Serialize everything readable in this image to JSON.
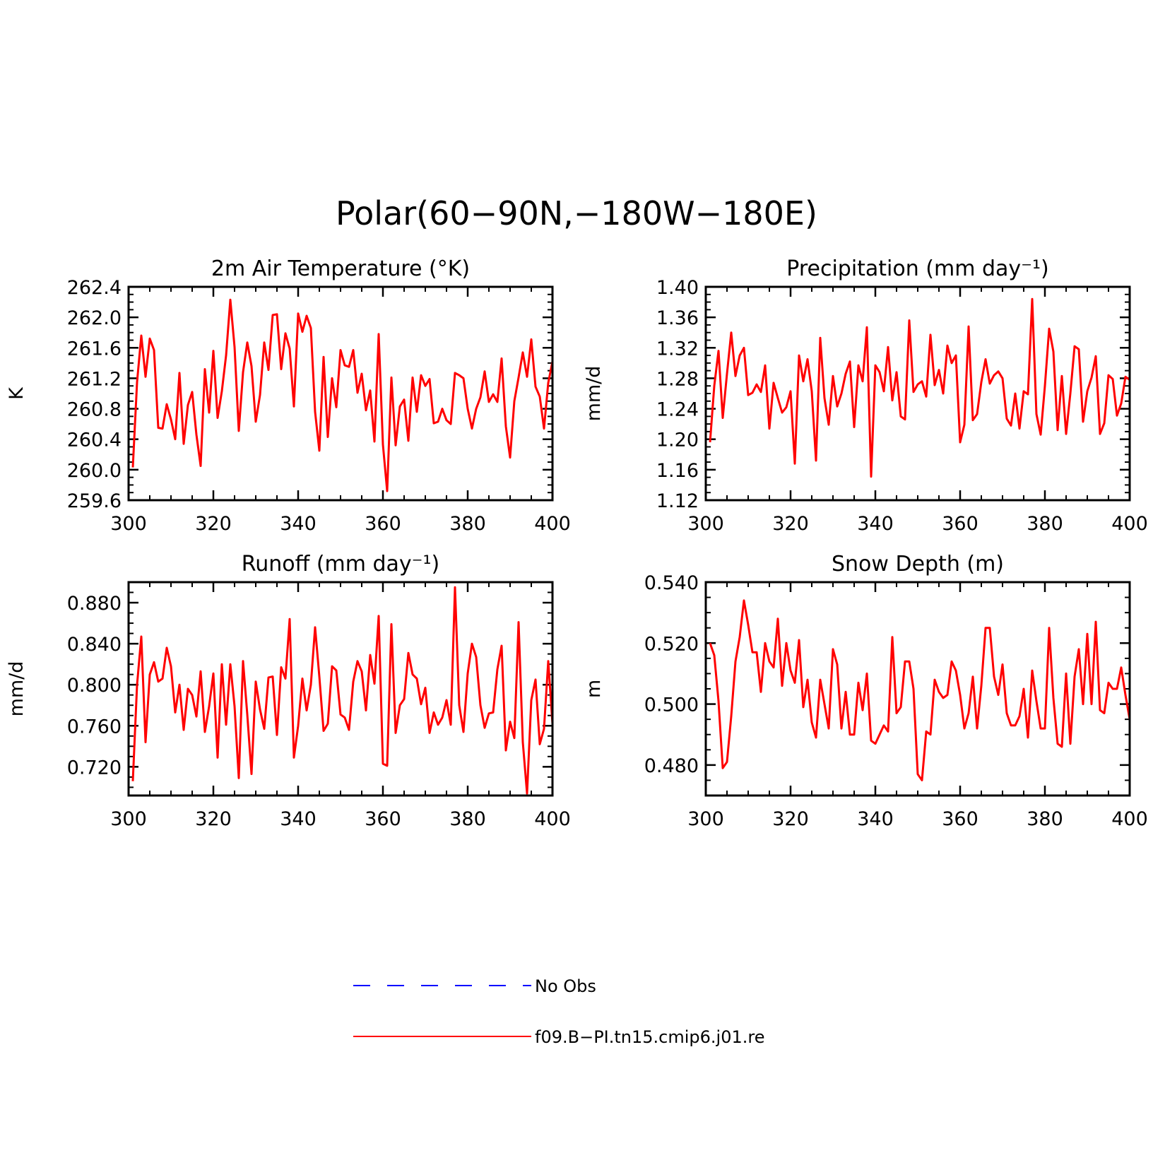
{
  "figure": {
    "title": "Polar(60−90N,−180W−180E)"
  },
  "colors": {
    "model_line": "#ff0000",
    "obs_line": "#0000ff",
    "axis": "#000000"
  },
  "legend": {
    "items": [
      {
        "label": "No Obs",
        "style": "dashed",
        "color": "#0000ff"
      },
      {
        "label": "f09.B−PI.tn15.cmip6.j01.re",
        "style": "solid",
        "color": "#ff0000"
      }
    ]
  },
  "chart_data": [
    {
      "type": "line",
      "title": "2m Air Temperature (°K)",
      "ylabel": "K",
      "xlim": [
        300,
        400
      ],
      "ylim": [
        259.6,
        262.4
      ],
      "xticks": [
        300,
        320,
        340,
        360,
        380,
        400
      ],
      "xtick_labels": [
        "300",
        "320",
        "340",
        "360",
        "380",
        "400"
      ],
      "yticks": [
        259.6,
        260.0,
        260.4,
        260.8,
        261.2,
        261.6,
        262.0,
        262.4
      ],
      "ytick_labels": [
        "259.6",
        "260.0",
        "260.4",
        "260.8",
        "261.2",
        "261.6",
        "262.0",
        "262.4"
      ],
      "x_start": 301,
      "series": [
        {
          "name": "f09.B−PI.tn15.cmip6.j01.re",
          "color": "#ff0000",
          "values": [
            260.03,
            261.15,
            261.76,
            261.22,
            261.72,
            261.57,
            260.55,
            260.54,
            260.86,
            260.66,
            260.4,
            261.27,
            260.34,
            260.85,
            261.02,
            260.46,
            260.05,
            261.32,
            260.75,
            261.56,
            260.68,
            261.03,
            261.5,
            262.23,
            261.61,
            260.51,
            261.28,
            261.67,
            261.36,
            260.63,
            260.98,
            261.67,
            261.31,
            262.03,
            262.04,
            261.32,
            261.79,
            261.59,
            260.83,
            262.05,
            261.81,
            262.02,
            261.86,
            260.76,
            260.25,
            261.48,
            260.43,
            261.2,
            260.82,
            261.57,
            261.37,
            261.35,
            261.57,
            261.01,
            261.26,
            260.78,
            261.04,
            260.37,
            261.78,
            260.33,
            259.72,
            261.21,
            260.32,
            260.83,
            260.92,
            260.38,
            261.21,
            260.76,
            261.24,
            261.1,
            261.19,
            260.61,
            260.63,
            260.8,
            260.65,
            260.6,
            261.27,
            261.24,
            261.2,
            260.8,
            260.54,
            260.8,
            260.95,
            261.29,
            260.89,
            260.99,
            260.89,
            261.46,
            260.57,
            260.16,
            260.9,
            261.21,
            261.54,
            261.22,
            261.71,
            261.09,
            260.96,
            260.54,
            261.14,
            261.42
          ]
        }
      ]
    },
    {
      "type": "line",
      "title": "Precipitation (mm day⁻¹)",
      "ylabel": "mm/d",
      "xlim": [
        300,
        400
      ],
      "ylim": [
        1.12,
        1.4
      ],
      "xticks": [
        300,
        320,
        340,
        360,
        380,
        400
      ],
      "xtick_labels": [
        "300",
        "320",
        "340",
        "360",
        "380",
        "400"
      ],
      "yticks": [
        1.12,
        1.16,
        1.2,
        1.24,
        1.28,
        1.32,
        1.36,
        1.4
      ],
      "ytick_labels": [
        "1.12",
        "1.16",
        "1.20",
        "1.24",
        "1.28",
        "1.32",
        "1.36",
        "1.40"
      ],
      "x_start": 301,
      "series": [
        {
          "name": "f09.B−PI.tn15.cmip6.j01.re",
          "color": "#ff0000",
          "values": [
            1.196,
            1.27,
            1.316,
            1.228,
            1.286,
            1.34,
            1.283,
            1.31,
            1.32,
            1.258,
            1.261,
            1.272,
            1.262,
            1.297,
            1.214,
            1.274,
            1.254,
            1.235,
            1.242,
            1.263,
            1.168,
            1.31,
            1.276,
            1.305,
            1.263,
            1.172,
            1.333,
            1.254,
            1.219,
            1.283,
            1.243,
            1.26,
            1.286,
            1.302,
            1.216,
            1.297,
            1.276,
            1.347,
            1.151,
            1.297,
            1.288,
            1.263,
            1.321,
            1.251,
            1.288,
            1.23,
            1.226,
            1.356,
            1.262,
            1.272,
            1.276,
            1.256,
            1.337,
            1.271,
            1.291,
            1.26,
            1.323,
            1.3,
            1.31,
            1.196,
            1.219,
            1.348,
            1.225,
            1.233,
            1.275,
            1.305,
            1.273,
            1.284,
            1.289,
            1.28,
            1.227,
            1.218,
            1.26,
            1.214,
            1.263,
            1.259,
            1.384,
            1.233,
            1.206,
            1.27,
            1.345,
            1.315,
            1.212,
            1.283,
            1.207,
            1.26,
            1.322,
            1.318,
            1.223,
            1.263,
            1.281,
            1.309,
            1.207,
            1.221,
            1.284,
            1.279,
            1.231,
            1.247,
            1.282,
            1.278
          ]
        }
      ]
    },
    {
      "type": "line",
      "title": "Runoff (mm day⁻¹)",
      "ylabel": "mm/d",
      "xlim": [
        300,
        400
      ],
      "ylim": [
        0.692,
        0.9
      ],
      "xticks": [
        300,
        320,
        340,
        360,
        380,
        400
      ],
      "xtick_labels": [
        "300",
        "320",
        "340",
        "360",
        "380",
        "400"
      ],
      "yticks": [
        0.72,
        0.76,
        0.8,
        0.84,
        0.88
      ],
      "ytick_labels": [
        "0.720",
        "0.760",
        "0.800",
        "0.840",
        "0.880"
      ],
      "x_start": 301,
      "series": [
        {
          "name": "f09.B−PI.tn15.cmip6.j01.re",
          "color": "#ff0000",
          "values": [
            0.706,
            0.8,
            0.847,
            0.744,
            0.81,
            0.822,
            0.803,
            0.806,
            0.836,
            0.818,
            0.773,
            0.8,
            0.756,
            0.796,
            0.79,
            0.769,
            0.813,
            0.754,
            0.779,
            0.811,
            0.729,
            0.82,
            0.761,
            0.82,
            0.779,
            0.709,
            0.823,
            0.771,
            0.713,
            0.803,
            0.776,
            0.757,
            0.807,
            0.808,
            0.751,
            0.817,
            0.806,
            0.864,
            0.729,
            0.76,
            0.806,
            0.775,
            0.8,
            0.856,
            0.808,
            0.755,
            0.762,
            0.818,
            0.814,
            0.771,
            0.768,
            0.756,
            0.803,
            0.823,
            0.813,
            0.775,
            0.829,
            0.801,
            0.867,
            0.723,
            0.721,
            0.859,
            0.753,
            0.78,
            0.786,
            0.831,
            0.81,
            0.806,
            0.781,
            0.797,
            0.753,
            0.773,
            0.761,
            0.768,
            0.785,
            0.761,
            0.895,
            0.78,
            0.754,
            0.811,
            0.84,
            0.827,
            0.78,
            0.758,
            0.772,
            0.773,
            0.815,
            0.838,
            0.736,
            0.764,
            0.748,
            0.861,
            0.744,
            0.694,
            0.785,
            0.805,
            0.742,
            0.757,
            0.823,
            0.762
          ]
        }
      ]
    },
    {
      "type": "line",
      "title": "Snow Depth (m)",
      "ylabel": "m",
      "xlim": [
        300,
        400
      ],
      "ylim": [
        0.47,
        0.54
      ],
      "xticks": [
        300,
        320,
        340,
        360,
        380,
        400
      ],
      "xtick_labels": [
        "300",
        "320",
        "340",
        "360",
        "380",
        "400"
      ],
      "yticks": [
        0.48,
        0.5,
        0.52,
        0.54
      ],
      "ytick_labels": [
        "0.480",
        "0.500",
        "0.520",
        "0.540"
      ],
      "x_start": 301,
      "series": [
        {
          "name": "f09.B−PI.tn15.cmip6.j01.re",
          "color": "#ff0000",
          "values": [
            0.52,
            0.516,
            0.501,
            0.479,
            0.481,
            0.496,
            0.514,
            0.522,
            0.534,
            0.526,
            0.517,
            0.517,
            0.504,
            0.52,
            0.514,
            0.512,
            0.528,
            0.506,
            0.52,
            0.511,
            0.507,
            0.521,
            0.499,
            0.508,
            0.494,
            0.489,
            0.508,
            0.5,
            0.492,
            0.518,
            0.513,
            0.492,
            0.504,
            0.49,
            0.49,
            0.507,
            0.498,
            0.51,
            0.488,
            0.487,
            0.49,
            0.493,
            0.491,
            0.522,
            0.497,
            0.499,
            0.514,
            0.514,
            0.505,
            0.477,
            0.475,
            0.491,
            0.49,
            0.508,
            0.504,
            0.502,
            0.503,
            0.514,
            0.511,
            0.503,
            0.492,
            0.497,
            0.509,
            0.492,
            0.506,
            0.525,
            0.525,
            0.509,
            0.503,
            0.513,
            0.497,
            0.493,
            0.493,
            0.496,
            0.505,
            0.489,
            0.511,
            0.501,
            0.492,
            0.492,
            0.525,
            0.502,
            0.487,
            0.486,
            0.51,
            0.487,
            0.509,
            0.518,
            0.5,
            0.523,
            0.5,
            0.527,
            0.498,
            0.497,
            0.507,
            0.505,
            0.505,
            0.512,
            0.503,
            0.495
          ]
        }
      ]
    }
  ]
}
